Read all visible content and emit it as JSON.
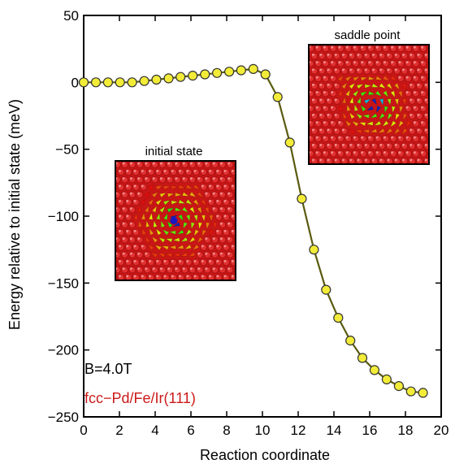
{
  "chart_data": {
    "type": "line",
    "xlabel": "Reaction coordinate",
    "ylabel": "Energy relative to initial state (meV)",
    "xlim": [
      0,
      20
    ],
    "ylim": [
      -250,
      50
    ],
    "xticks": [
      0,
      2,
      4,
      6,
      8,
      10,
      12,
      14,
      16,
      18,
      20
    ],
    "yticks": [
      50,
      0,
      -50,
      -100,
      -150,
      -200,
      -250
    ],
    "grid": false,
    "series": [
      {
        "x": [
          0.0,
          0.68,
          1.36,
          2.03,
          2.71,
          3.39,
          4.07,
          4.75,
          5.42,
          6.1,
          6.78,
          7.46,
          8.14,
          8.81,
          9.49,
          10.17,
          10.85,
          11.53,
          12.2,
          12.88,
          13.56,
          14.24,
          14.92,
          15.59,
          16.27,
          16.95,
          17.63,
          18.31,
          18.98
        ],
        "y": [
          0,
          0,
          0,
          0,
          0,
          1,
          2,
          3,
          4,
          5,
          6,
          7,
          8,
          9,
          10,
          6,
          -11,
          -45,
          -87,
          -125,
          -155,
          -176,
          -193,
          -206,
          -215,
          -222,
          -227,
          -231,
          -232
        ]
      }
    ],
    "colors": {
      "marker_fill": "#f2ec38",
      "marker_edge": "#333333",
      "line": "#5a5a10"
    },
    "annotations": [
      {
        "text": "B=4.0T",
        "color": "#000000"
      },
      {
        "text": "fcc−Pd/Fe/Ir(111)",
        "color": "#cc1a1a"
      }
    ],
    "insets": [
      {
        "title": "initial state",
        "kind": "skyrmion"
      },
      {
        "title": "saddle point",
        "kind": "saddle"
      }
    ]
  }
}
